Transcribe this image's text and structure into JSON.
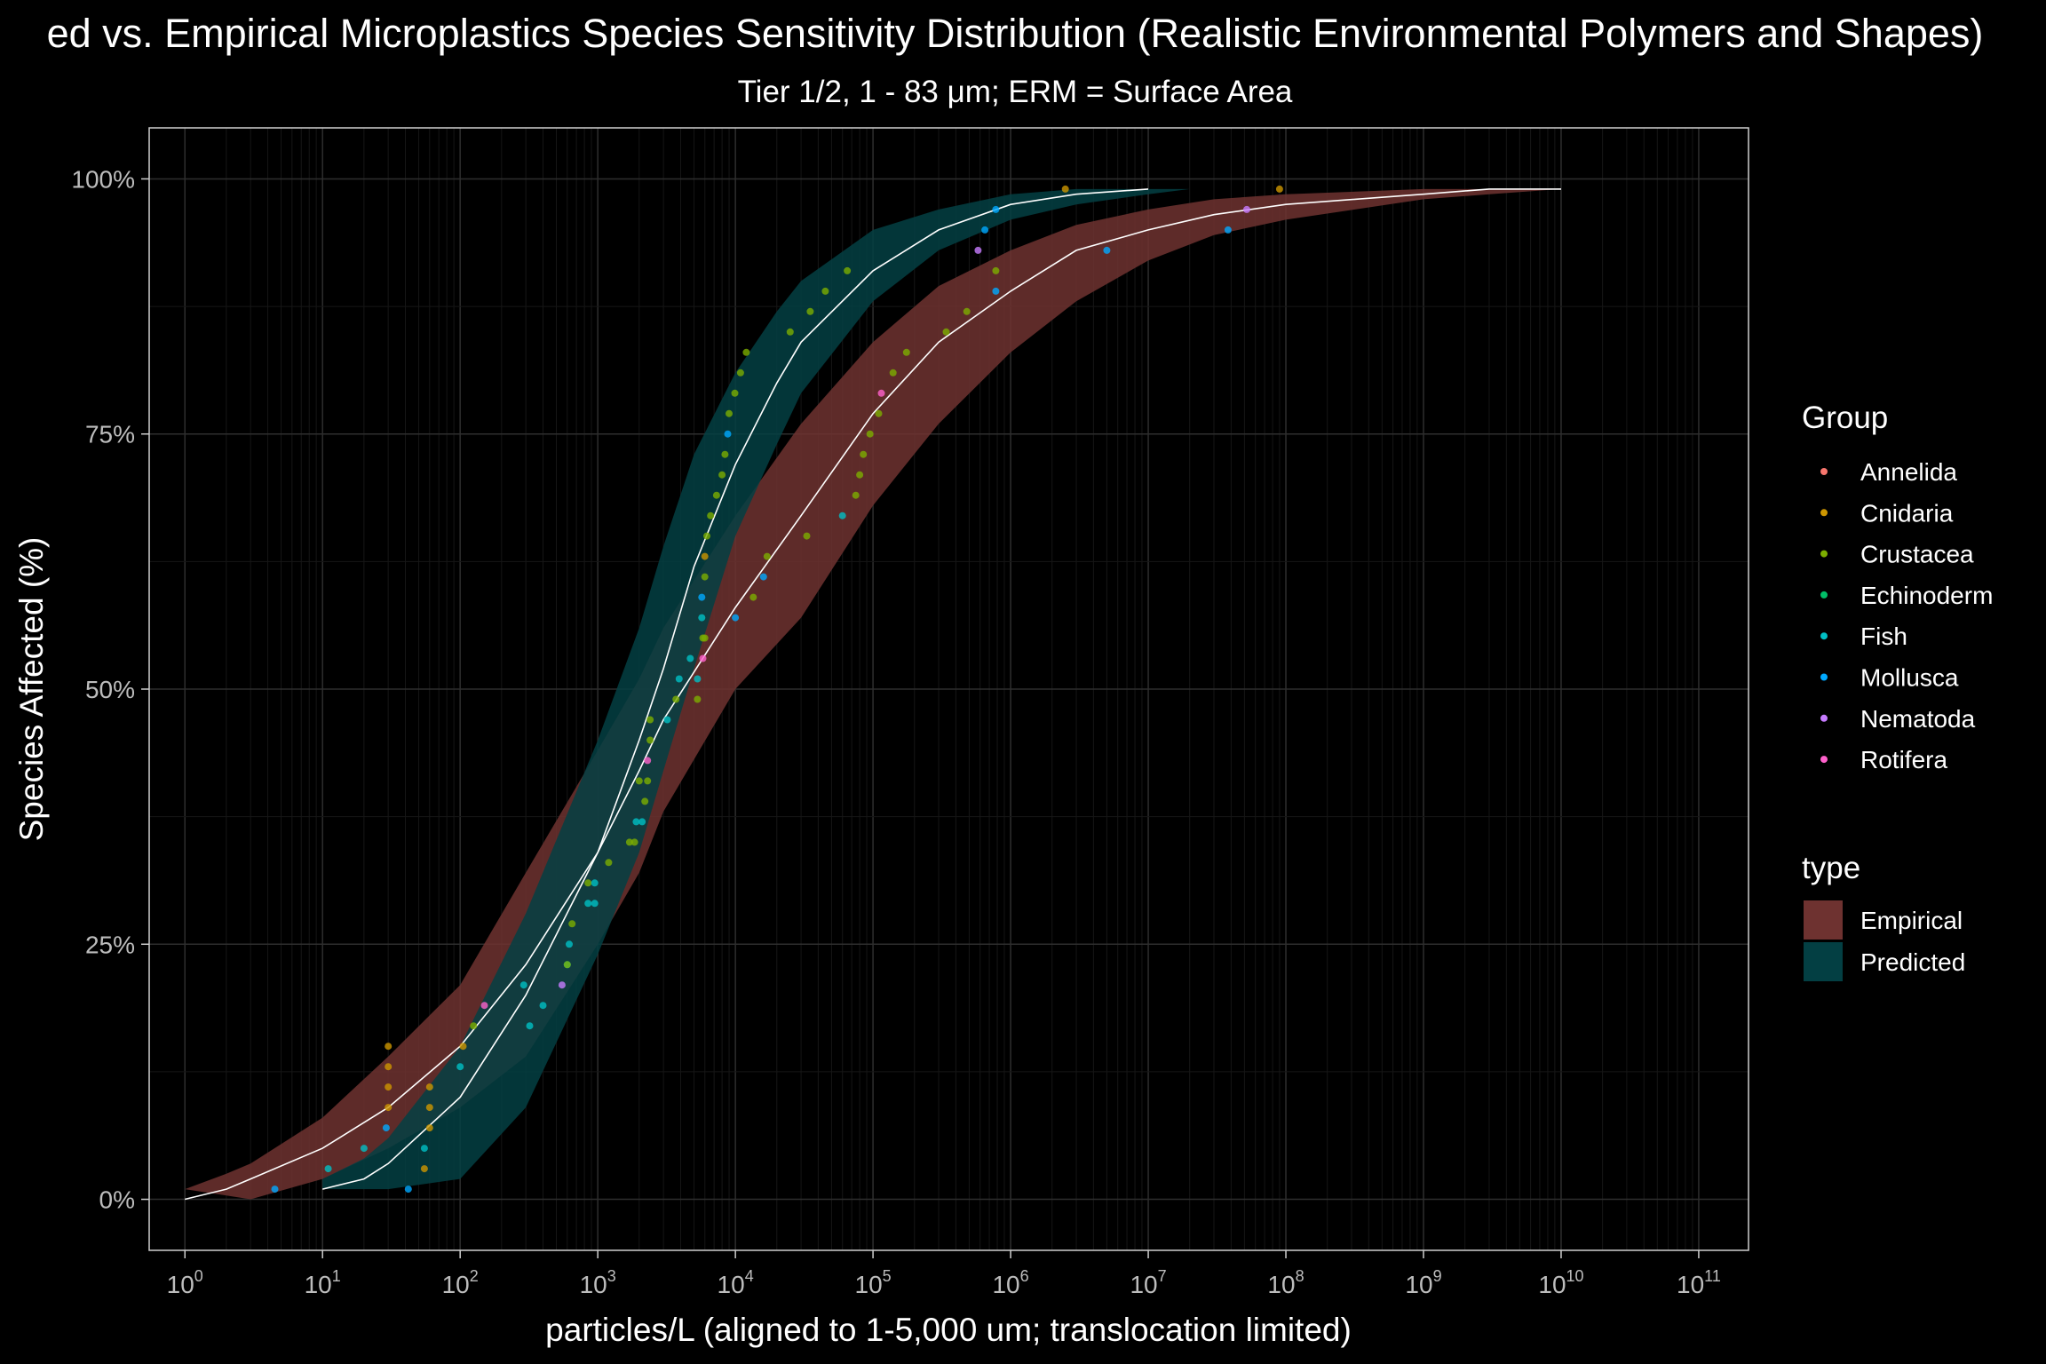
{
  "chart_data": {
    "type": "line",
    "title": "ed vs. Empirical Microplastics Species Sensitivity Distribution (Realistic Environmental Polymers and Shapes)",
    "subtitle": "Tier 1/2, 1 - 83 μm; ERM = Surface Area",
    "xlabel": "particles/L (aligned to 1-5,000 um; translocation limited)",
    "ylabel": "Species Affected (%)",
    "x_scale": "log10",
    "xlim": [
      0.55,
      230000000000.0
    ],
    "ylim": [
      -0.05,
      1.05
    ],
    "grid": true,
    "x_ticks": [
      {
        "value": 1,
        "base": "10",
        "exp": "0"
      },
      {
        "value": 10,
        "base": "10",
        "exp": "1"
      },
      {
        "value": 100,
        "base": "10",
        "exp": "2"
      },
      {
        "value": 1000,
        "base": "10",
        "exp": "3"
      },
      {
        "value": 10000,
        "base": "10",
        "exp": "4"
      },
      {
        "value": 100000,
        "base": "10",
        "exp": "5"
      },
      {
        "value": 1000000,
        "base": "10",
        "exp": "6"
      },
      {
        "value": 10000000,
        "base": "10",
        "exp": "7"
      },
      {
        "value": 100000000,
        "base": "10",
        "exp": "8"
      },
      {
        "value": 1000000000,
        "base": "10",
        "exp": "9"
      },
      {
        "value": 10000000000,
        "base": "10",
        "exp": "10"
      },
      {
        "value": 100000000000,
        "base": "10",
        "exp": "11"
      }
    ],
    "y_ticks": [
      {
        "value": 0,
        "label": "0%"
      },
      {
        "value": 0.25,
        "label": "25%"
      },
      {
        "value": 0.5,
        "label": "50%"
      },
      {
        "value": 0.75,
        "label": "75%"
      },
      {
        "value": 1.0,
        "label": "100%"
      }
    ],
    "groups": [
      {
        "name": "Annelida",
        "color": "#F8766D"
      },
      {
        "name": "Cnidaria",
        "color": "#CD9600"
      },
      {
        "name": "Crustacea",
        "color": "#7CAE00"
      },
      {
        "name": "Echinoderm",
        "color": "#00BE67"
      },
      {
        "name": "Fish",
        "color": "#00BFC4"
      },
      {
        "name": "Mollusca",
        "color": "#00A9FF"
      },
      {
        "name": "Nematoda",
        "color": "#C77CFF"
      },
      {
        "name": "Rotifera",
        "color": "#FF61CC"
      }
    ],
    "series": [
      {
        "name": "Empirical",
        "color": "#6e3230",
        "fit_line_color": "#ffffff",
        "x": [
          1,
          2,
          3,
          10,
          30,
          100,
          300,
          1000,
          2000,
          3000,
          10000,
          30000,
          100000,
          300000,
          1000000,
          3000000,
          10000000,
          30000000,
          100000000,
          1000000000,
          3000000000,
          10000000000,
          50000000000,
          90000000000
        ],
        "y_fit": [
          0.0,
          0.01,
          0.02,
          0.05,
          0.09,
          0.15,
          0.23,
          0.34,
          0.42,
          0.47,
          0.58,
          0.67,
          0.77,
          0.84,
          0.89,
          0.93,
          0.95,
          0.965,
          0.975,
          0.985,
          0.99,
          0.99,
          null,
          null
        ],
        "y_lower": [
          null,
          null,
          0.0,
          0.02,
          0.05,
          0.09,
          0.14,
          0.25,
          0.32,
          0.38,
          0.5,
          0.57,
          0.68,
          0.76,
          0.83,
          0.88,
          0.92,
          0.945,
          0.96,
          0.98,
          0.985,
          0.99,
          0.99,
          0.99
        ],
        "y_upper": [
          0.01,
          0.025,
          0.035,
          0.08,
          0.14,
          0.21,
          0.32,
          0.44,
          0.51,
          0.56,
          0.67,
          0.76,
          0.84,
          0.895,
          0.93,
          0.955,
          0.97,
          0.98,
          0.985,
          0.99,
          0.99,
          null,
          null,
          null
        ]
      },
      {
        "name": "Predicted",
        "color": "#033f43",
        "fit_line_color": "#ffffff",
        "x": [
          10,
          20,
          30,
          100,
          300,
          1000,
          2000,
          3000,
          5000,
          10000,
          20000,
          30000,
          100000,
          300000,
          1000000,
          3000000,
          10000000,
          20000000
        ],
        "y_fit": [
          0.01,
          0.02,
          0.035,
          0.1,
          0.2,
          0.34,
          0.45,
          0.52,
          0.62,
          0.72,
          0.8,
          0.84,
          0.91,
          0.95,
          0.975,
          0.985,
          0.99,
          null
        ],
        "y_lower": [
          0.01,
          0.01,
          0.01,
          0.02,
          0.09,
          0.24,
          0.34,
          0.42,
          0.52,
          0.65,
          0.74,
          0.79,
          0.88,
          0.93,
          0.96,
          0.975,
          0.985,
          0.99
        ],
        "y_upper": [
          0.02,
          0.04,
          0.06,
          0.15,
          0.28,
          0.45,
          0.56,
          0.64,
          0.73,
          0.81,
          0.87,
          0.9,
          0.95,
          0.97,
          0.985,
          0.99,
          0.99,
          0.99
        ]
      }
    ],
    "points": [
      {
        "group": "Mollusca",
        "x": 4.5,
        "y": 0.01
      },
      {
        "group": "Fish",
        "x": 11,
        "y": 0.03
      },
      {
        "group": "Fish",
        "x": 20,
        "y": 0.05
      },
      {
        "group": "Mollusca",
        "x": 29,
        "y": 0.07
      },
      {
        "group": "Cnidaria",
        "x": 30,
        "y": 0.09
      },
      {
        "group": "Cnidaria",
        "x": 30,
        "y": 0.11
      },
      {
        "group": "Cnidaria",
        "x": 30,
        "y": 0.13
      },
      {
        "group": "Cnidaria",
        "x": 30,
        "y": 0.15
      },
      {
        "group": "Mollusca",
        "x": 42,
        "y": 0.01
      },
      {
        "group": "Cnidaria",
        "x": 55,
        "y": 0.03
      },
      {
        "group": "Fish",
        "x": 55,
        "y": 0.05
      },
      {
        "group": "Cnidaria",
        "x": 60,
        "y": 0.07
      },
      {
        "group": "Cnidaria",
        "x": 60,
        "y": 0.09
      },
      {
        "group": "Cnidaria",
        "x": 60,
        "y": 0.11
      },
      {
        "group": "Fish",
        "x": 100,
        "y": 0.13
      },
      {
        "group": "Cnidaria",
        "x": 105,
        "y": 0.15
      },
      {
        "group": "Crustacea",
        "x": 125,
        "y": 0.17
      },
      {
        "group": "Rotifera",
        "x": 150,
        "y": 0.19
      },
      {
        "group": "Fish",
        "x": 290,
        "y": 0.21
      },
      {
        "group": "Fish",
        "x": 320,
        "y": 0.17
      },
      {
        "group": "Fish",
        "x": 400,
        "y": 0.19
      },
      {
        "group": "Nematoda",
        "x": 550,
        "y": 0.21
      },
      {
        "group": "Fish",
        "x": 600,
        "y": 0.23
      },
      {
        "group": "Crustacea",
        "x": 600,
        "y": 0.23
      },
      {
        "group": "Fish",
        "x": 620,
        "y": 0.25
      },
      {
        "group": "Crustacea",
        "x": 650,
        "y": 0.27
      },
      {
        "group": "Crustacea",
        "x": 850,
        "y": 0.31
      },
      {
        "group": "Fish",
        "x": 850,
        "y": 0.29
      },
      {
        "group": "Fish",
        "x": 950,
        "y": 0.29
      },
      {
        "group": "Fish",
        "x": 950,
        "y": 0.31
      },
      {
        "group": "Crustacea",
        "x": 1200,
        "y": 0.33
      },
      {
        "group": "Crustacea",
        "x": 1700,
        "y": 0.35
      },
      {
        "group": "Crustacea",
        "x": 1850,
        "y": 0.35
      },
      {
        "group": "Fish",
        "x": 1900,
        "y": 0.37
      },
      {
        "group": "Fish",
        "x": 2100,
        "y": 0.37
      },
      {
        "group": "Crustacea",
        "x": 2000,
        "y": 0.41
      },
      {
        "group": "Crustacea",
        "x": 2200,
        "y": 0.39
      },
      {
        "group": "Crustacea",
        "x": 2300,
        "y": 0.41
      },
      {
        "group": "Rotifera",
        "x": 2300,
        "y": 0.43
      },
      {
        "group": "Crustacea",
        "x": 2400,
        "y": 0.45
      },
      {
        "group": "Crustacea",
        "x": 2400,
        "y": 0.47
      },
      {
        "group": "Fish",
        "x": 3200,
        "y": 0.47
      },
      {
        "group": "Crustacea",
        "x": 3700,
        "y": 0.49
      },
      {
        "group": "Fish",
        "x": 3900,
        "y": 0.51
      },
      {
        "group": "Fish",
        "x": 4700,
        "y": 0.53
      },
      {
        "group": "Crustacea",
        "x": 5300,
        "y": 0.49
      },
      {
        "group": "Fish",
        "x": 5300,
        "y": 0.51
      },
      {
        "group": "Rotifera",
        "x": 5800,
        "y": 0.53
      },
      {
        "group": "Crustacea",
        "x": 5800,
        "y": 0.55
      },
      {
        "group": "Fish",
        "x": 5700,
        "y": 0.57
      },
      {
        "group": "Mollusca",
        "x": 5700,
        "y": 0.59
      },
      {
        "group": "Crustacea",
        "x": 6000,
        "y": 0.55
      },
      {
        "group": "Crustacea",
        "x": 6000,
        "y": 0.61
      },
      {
        "group": "Cnidaria",
        "x": 6000,
        "y": 0.63
      },
      {
        "group": "Crustacea",
        "x": 6200,
        "y": 0.65
      },
      {
        "group": "Crustacea",
        "x": 6600,
        "y": 0.67
      },
      {
        "group": "Crustacea",
        "x": 7300,
        "y": 0.69
      },
      {
        "group": "Crustacea",
        "x": 8000,
        "y": 0.71
      },
      {
        "group": "Crustacea",
        "x": 8400,
        "y": 0.73
      },
      {
        "group": "Mollusca",
        "x": 8800,
        "y": 0.75
      },
      {
        "group": "Crustacea",
        "x": 9000,
        "y": 0.77
      },
      {
        "group": "Crustacea",
        "x": 9900,
        "y": 0.79
      },
      {
        "group": "Crustacea",
        "x": 10900,
        "y": 0.81
      },
      {
        "group": "Crustacea",
        "x": 12000,
        "y": 0.83
      },
      {
        "group": "Mollusca",
        "x": 10000,
        "y": 0.57
      },
      {
        "group": "Crustacea",
        "x": 13500,
        "y": 0.59
      },
      {
        "group": "Mollusca",
        "x": 16000,
        "y": 0.61
      },
      {
        "group": "Crustacea",
        "x": 17000,
        "y": 0.63
      },
      {
        "group": "Crustacea",
        "x": 25000,
        "y": 0.85
      },
      {
        "group": "Crustacea",
        "x": 35000,
        "y": 0.87
      },
      {
        "group": "Crustacea",
        "x": 33000,
        "y": 0.65
      },
      {
        "group": "Crustacea",
        "x": 45000,
        "y": 0.89
      },
      {
        "group": "Crustacea",
        "x": 65000,
        "y": 0.91
      },
      {
        "group": "Fish",
        "x": 60000,
        "y": 0.67
      },
      {
        "group": "Crustacea",
        "x": 75000,
        "y": 0.69
      },
      {
        "group": "Crustacea",
        "x": 80000,
        "y": 0.71
      },
      {
        "group": "Crustacea",
        "x": 85000,
        "y": 0.73
      },
      {
        "group": "Crustacea",
        "x": 95000,
        "y": 0.75
      },
      {
        "group": "Crustacea",
        "x": 110000,
        "y": 0.77
      },
      {
        "group": "Rotifera",
        "x": 115000,
        "y": 0.79
      },
      {
        "group": "Crustacea",
        "x": 140000,
        "y": 0.81
      },
      {
        "group": "Crustacea",
        "x": 175000,
        "y": 0.83
      },
      {
        "group": "Crustacea",
        "x": 340000,
        "y": 0.85
      },
      {
        "group": "Crustacea",
        "x": 480000,
        "y": 0.87
      },
      {
        "group": "Nematoda",
        "x": 580000,
        "y": 0.93
      },
      {
        "group": "Mollusca",
        "x": 650000,
        "y": 0.95
      },
      {
        "group": "Mollusca",
        "x": 780000,
        "y": 0.97
      },
      {
        "group": "Mollusca",
        "x": 780000,
        "y": 0.89
      },
      {
        "group": "Crustacea",
        "x": 780000,
        "y": 0.91
      },
      {
        "group": "Cnidaria",
        "x": 2500000,
        "y": 0.99
      },
      {
        "group": "Mollusca",
        "x": 5000000,
        "y": 0.93
      },
      {
        "group": "Mollusca",
        "x": 38000000,
        "y": 0.95
      },
      {
        "group": "Nematoda",
        "x": 52000000,
        "y": 0.97
      },
      {
        "group": "Cnidaria",
        "x": 90000000,
        "y": 0.99
      }
    ],
    "legend": {
      "placement": "right",
      "group_title": "Group",
      "type_title": "type",
      "type_entries": [
        {
          "name": "Empirical",
          "color": "#6e3230"
        },
        {
          "name": "Predicted",
          "color": "#033f43"
        }
      ]
    }
  }
}
